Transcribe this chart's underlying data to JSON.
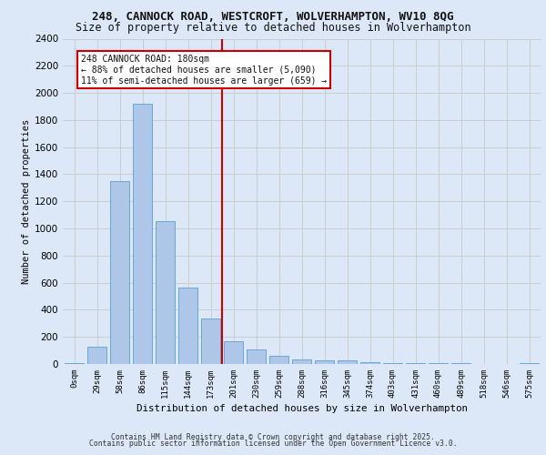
{
  "title_line1": "248, CANNOCK ROAD, WESTCROFT, WOLVERHAMPTON, WV10 8QG",
  "title_line2": "Size of property relative to detached houses in Wolverhampton",
  "xlabel": "Distribution of detached houses by size in Wolverhampton",
  "ylabel": "Number of detached properties",
  "footer_line1": "Contains HM Land Registry data © Crown copyright and database right 2025.",
  "footer_line2": "Contains public sector information licensed under the Open Government Licence v3.0.",
  "bar_labels": [
    "0sqm",
    "29sqm",
    "58sqm",
    "86sqm",
    "115sqm",
    "144sqm",
    "173sqm",
    "201sqm",
    "230sqm",
    "259sqm",
    "288sqm",
    "316sqm",
    "345sqm",
    "374sqm",
    "403sqm",
    "431sqm",
    "460sqm",
    "489sqm",
    "518sqm",
    "546sqm",
    "575sqm"
  ],
  "bar_values": [
    10,
    125,
    1350,
    1920,
    1055,
    565,
    335,
    170,
    110,
    60,
    35,
    25,
    25,
    15,
    10,
    5,
    5,
    5,
    0,
    0,
    10
  ],
  "bar_color": "#aec6e8",
  "bar_edgecolor": "#5a9fd4",
  "annotation_line1": "248 CANNOCK ROAD: 180sqm",
  "annotation_line2": "← 88% of detached houses are smaller (5,090)",
  "annotation_line3": "11% of semi-detached houses are larger (659) →",
  "annotation_box_color": "#ffffff",
  "annotation_box_edgecolor": "#cc0000",
  "vline_x": 6.5,
  "vline_color": "#cc0000",
  "ylim": [
    0,
    2400
  ],
  "yticks": [
    0,
    200,
    400,
    600,
    800,
    1000,
    1200,
    1400,
    1600,
    1800,
    2000,
    2200,
    2400
  ],
  "grid_color": "#cccccc",
  "bg_color": "#dce8f8",
  "plot_bg_color": "#dce8f8",
  "fig_bg_color": "#dce8f8"
}
